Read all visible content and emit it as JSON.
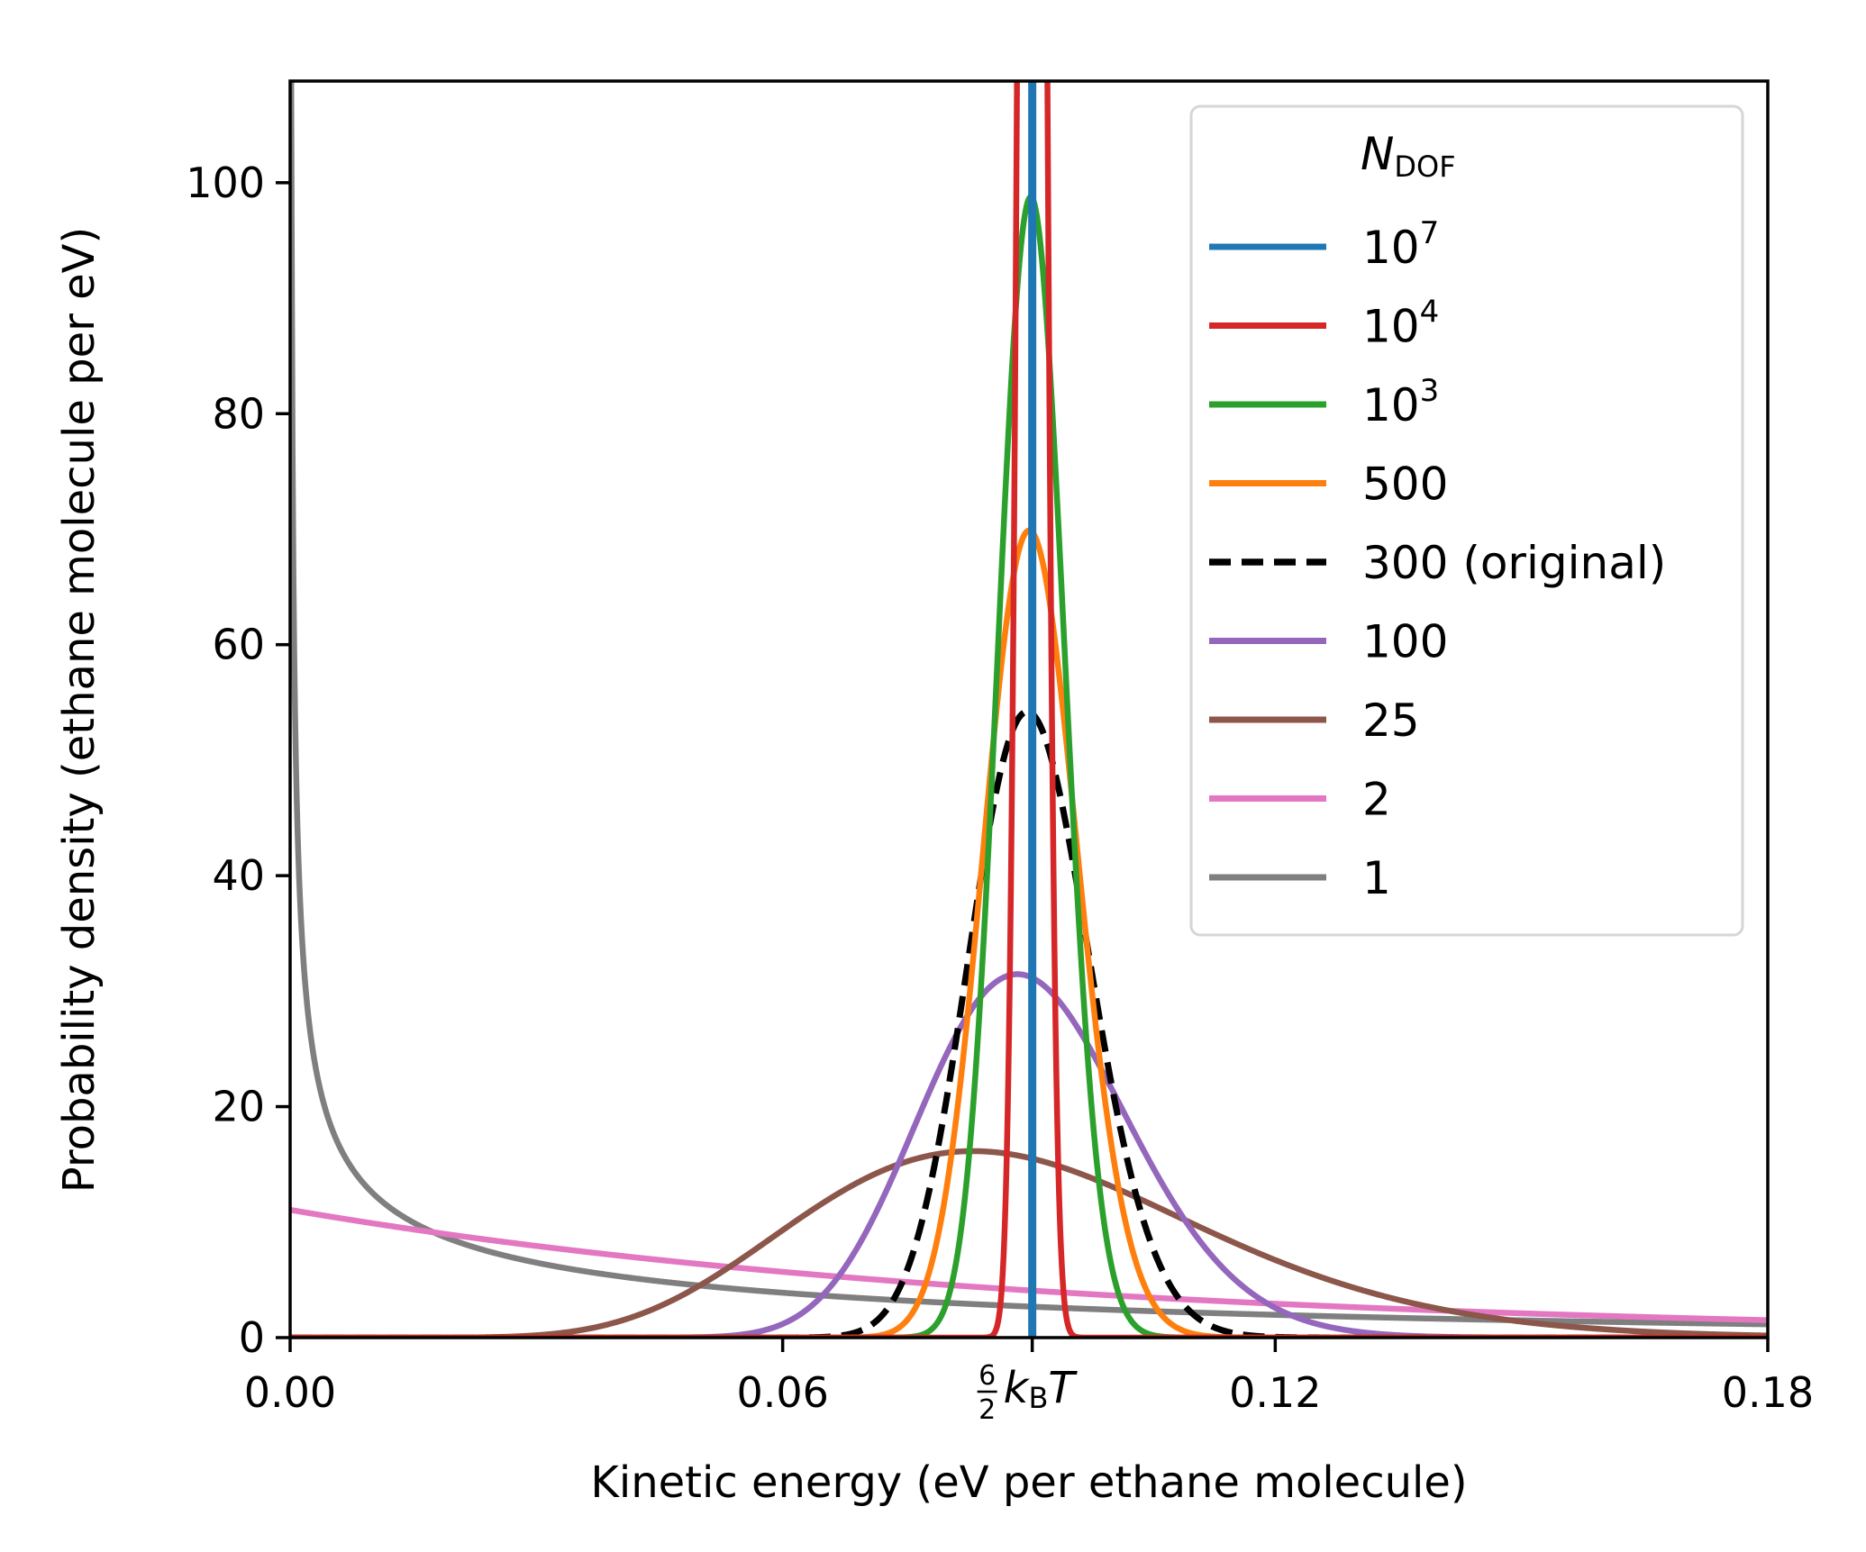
{
  "chart_data": {
    "type": "line",
    "xlabel": "Kinetic energy (eV per ethane molecule)",
    "ylabel": "Probability density (ethane molecule per eV)",
    "xlim": [
      0,
      0.18
    ],
    "ylim": [
      0,
      108.8
    ],
    "x_ticks": [
      {
        "value": 0,
        "label": "0.00"
      },
      {
        "value": 0.06,
        "label": "0.06"
      },
      {
        "value": 0.12,
        "label": "0.12"
      },
      {
        "value": 0.18,
        "label": "0.18"
      }
    ],
    "special_tick": {
      "value": 0.0904,
      "label": "6/2 k_B T",
      "fraction_num": "6",
      "fraction_den": "2",
      "symbol": "k",
      "subscript": "B",
      "suffix": "T"
    },
    "y_ticks": [
      {
        "value": 0,
        "label": "0"
      },
      {
        "value": 20,
        "label": "20"
      },
      {
        "value": 40,
        "label": "40"
      },
      {
        "value": 60,
        "label": "60"
      },
      {
        "value": 80,
        "label": "80"
      },
      {
        "value": 100,
        "label": "100"
      }
    ],
    "grid": false,
    "legend": {
      "placement": "top-right",
      "title_symbol": "N",
      "title_subscript": "DOF"
    },
    "mean_energy": 0.0904,
    "series": [
      {
        "name": "10",
        "superscript": "7",
        "ndof": 10000000,
        "color": "#1f77b4",
        "dashed": false
      },
      {
        "name": "10",
        "superscript": "4",
        "ndof": 10000,
        "color": "#d62728",
        "dashed": false
      },
      {
        "name": "10",
        "superscript": "3",
        "ndof": 1000,
        "color": "#2ca02c",
        "dashed": false
      },
      {
        "name": "500",
        "superscript": "",
        "ndof": 500,
        "color": "#ff7f0e",
        "dashed": false
      },
      {
        "name": "300 (original)",
        "superscript": "",
        "ndof": 300,
        "color": "#000000",
        "dashed": true
      },
      {
        "name": "100",
        "superscript": "",
        "ndof": 100,
        "color": "#9467bd",
        "dashed": false
      },
      {
        "name": "25",
        "superscript": "",
        "ndof": 25,
        "color": "#8c564b",
        "dashed": false
      },
      {
        "name": "2",
        "superscript": "",
        "ndof": 2,
        "color": "#e377c2",
        "dashed": false
      },
      {
        "name": "1",
        "superscript": "",
        "ndof": 1,
        "color": "#7f7f7f",
        "dashed": false
      }
    ]
  }
}
